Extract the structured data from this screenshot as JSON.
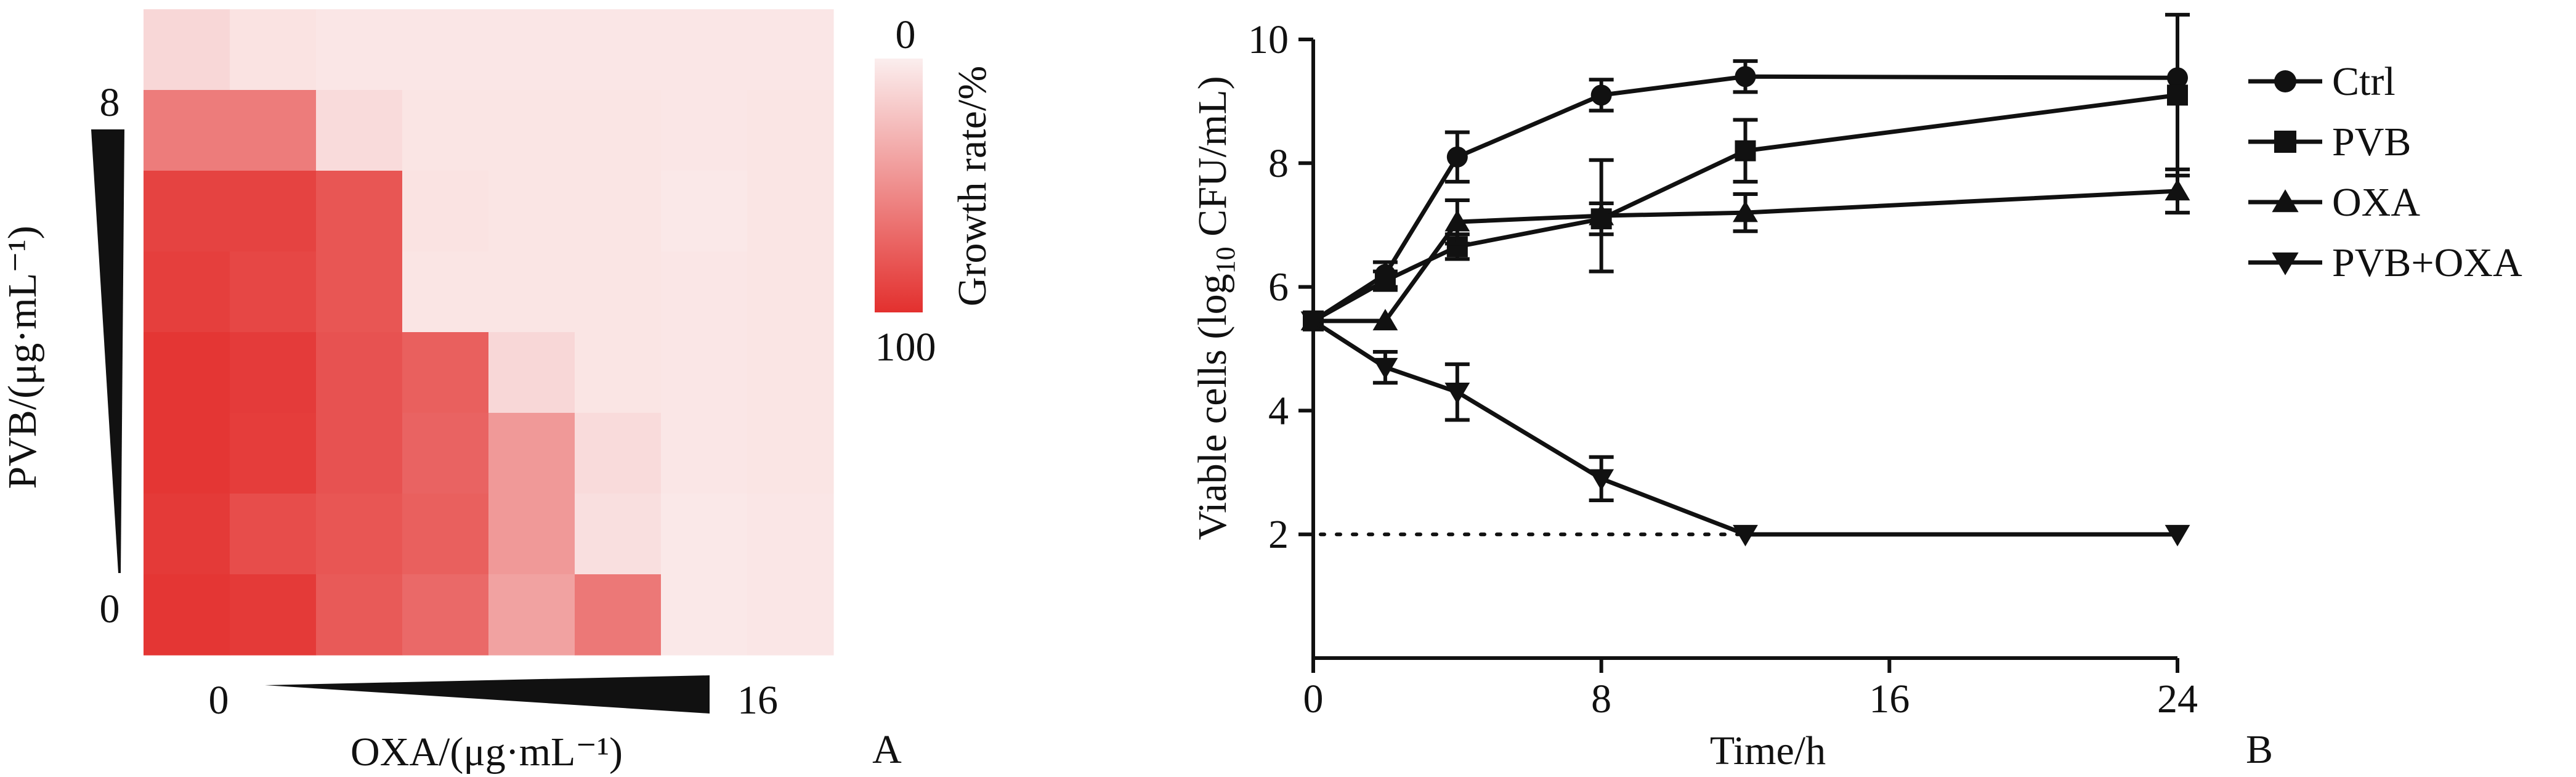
{
  "chart_data": [
    {
      "type": "heatmap",
      "panel_label": "A",
      "xlabel": "OXA/(μg·mL⁻¹)",
      "ylabel": "PVB/(μg·mL⁻¹)",
      "x_min_label": "0",
      "x_max_label": "16",
      "y_min_label": "0",
      "y_max_label": "8",
      "colorbar": {
        "label": "Growth rate/%",
        "min_label": "0",
        "max_label": "100",
        "low_color": "#fbeeee",
        "high_color": "#e3302e"
      },
      "cells": [
        [
          12,
          6,
          4,
          4,
          4,
          4,
          4,
          4
        ],
        [
          60,
          60,
          10,
          5,
          5,
          5,
          4,
          5
        ],
        [
          90,
          90,
          80,
          6,
          5,
          5,
          3,
          5
        ],
        [
          92,
          88,
          80,
          5,
          5,
          5,
          4,
          5
        ],
        [
          97,
          94,
          82,
          75,
          12,
          5,
          4,
          5
        ],
        [
          97,
          93,
          82,
          73,
          45,
          10,
          4,
          5
        ],
        [
          95,
          85,
          80,
          75,
          45,
          8,
          3,
          4
        ],
        [
          97,
          95,
          78,
          70,
          40,
          62,
          3,
          4
        ]
      ]
    },
    {
      "type": "line",
      "panel_label": "B",
      "xlabel": "Time/h",
      "ylabel_main": "Viable cells (log",
      "ylabel_sub": "10",
      "ylabel_tail": " CFU/mL)",
      "xlim": [
        0,
        24
      ],
      "ylim": [
        0,
        10
      ],
      "xticks": [
        0,
        8,
        16,
        24
      ],
      "yticks": [
        2,
        4,
        6,
        8,
        10
      ],
      "detection_limit": {
        "y": 2,
        "x_from": 0,
        "x_to": 12
      },
      "x": [
        0,
        2,
        4,
        8,
        12,
        24
      ],
      "series": [
        {
          "name": "Ctrl",
          "marker": "circle",
          "values": [
            5.45,
            6.2,
            8.1,
            9.1,
            9.4,
            9.38
          ],
          "errors": [
            0.05,
            0.2,
            0.4,
            0.25,
            0.25,
            0.08
          ]
        },
        {
          "name": "PVB",
          "marker": "square",
          "values": [
            5.45,
            6.1,
            6.65,
            7.1,
            8.2,
            9.1
          ],
          "errors": [
            0.05,
            0.15,
            0.2,
            0.25,
            0.5,
            1.3
          ]
        },
        {
          "name": "OXA",
          "marker": "triangle-up",
          "values": [
            5.45,
            5.45,
            7.05,
            7.15,
            7.2,
            7.55
          ],
          "errors": [
            0.05,
            0.05,
            0.35,
            0.9,
            0.3,
            0.35
          ]
        },
        {
          "name": "PVB+OXA",
          "marker": "triangle-down",
          "values": [
            5.45,
            4.7,
            4.3,
            2.9,
            2.0,
            2.0
          ],
          "errors": [
            0.05,
            0.25,
            0.45,
            0.35,
            0.05,
            0.05
          ]
        }
      ]
    }
  ]
}
